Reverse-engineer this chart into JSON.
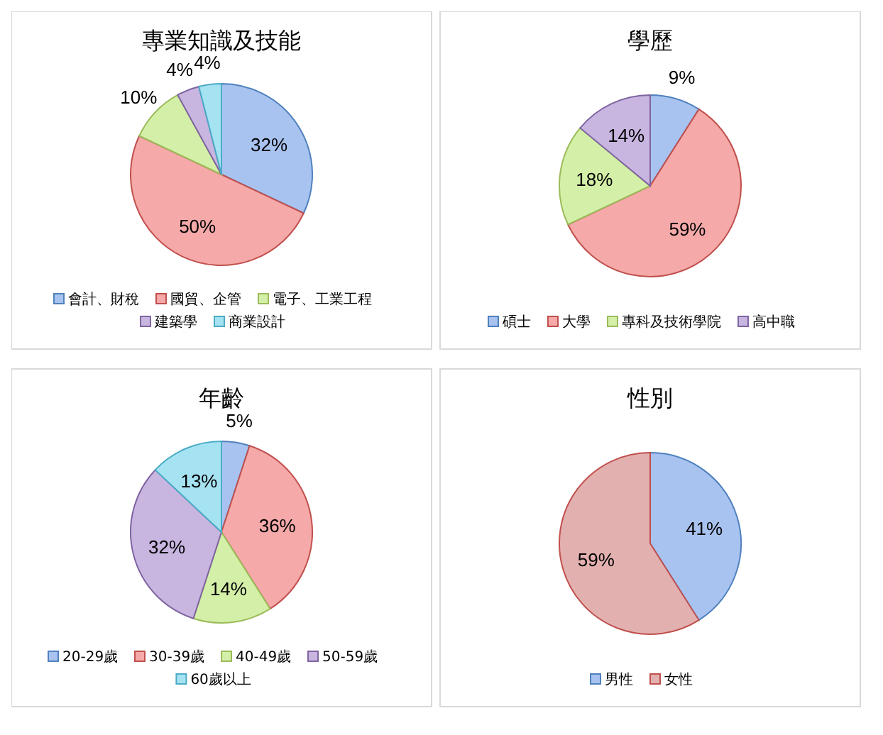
{
  "chart_data": [
    {
      "type": "pie",
      "title": "專業知識及技能",
      "categories": [
        "會計、財稅",
        "國貿、企管",
        "電子、工業工程",
        "建築學",
        "商業設計"
      ],
      "values": [
        32,
        50,
        10,
        4,
        4
      ],
      "value_labels": [
        "32%",
        "50%",
        "10%",
        "4%",
        "4%"
      ],
      "colors": [
        "#a9c3f0",
        "#f5a9a9",
        "#d4f0a8",
        "#c8b6e0",
        "#a6e3f2"
      ],
      "legend": "bottom"
    },
    {
      "type": "pie",
      "title": "學歷",
      "categories": [
        "碩士",
        "大學",
        "專科及技術學院",
        "高中職"
      ],
      "values": [
        9,
        59,
        18,
        14
      ],
      "value_labels": [
        "9%",
        "59%",
        "18%",
        "14%"
      ],
      "colors": [
        "#a9c3f0",
        "#f5a9a9",
        "#d4f0a8",
        "#c8b6e0"
      ],
      "legend": "bottom"
    },
    {
      "type": "pie",
      "title": "年齡",
      "categories": [
        "20-29歲",
        "30-39歲",
        "40-49歲",
        "50-59歲",
        "60歲以上"
      ],
      "values": [
        5,
        36,
        14,
        32,
        13
      ],
      "value_labels": [
        "5%",
        "36%",
        "14%",
        "32%",
        "13%"
      ],
      "colors": [
        "#a9c3f0",
        "#f5a9a9",
        "#d4f0a8",
        "#c8b6e0",
        "#a6e3f2"
      ],
      "legend": "bottom"
    },
    {
      "type": "pie",
      "title": "性別",
      "categories": [
        "男性",
        "女性"
      ],
      "values": [
        41,
        59
      ],
      "value_labels": [
        "41%",
        "59%"
      ],
      "colors": [
        "#a9c3f0",
        "#e3b0b0"
      ],
      "legend": "bottom"
    }
  ]
}
